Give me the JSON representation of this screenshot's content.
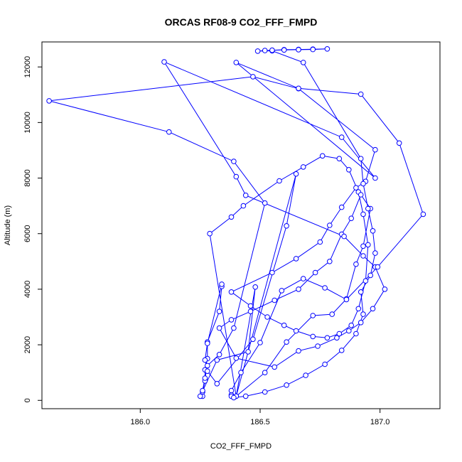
{
  "chart_data": {
    "type": "line",
    "title": "ORCAS RF08-9 CO2_FFF_FMPD",
    "xlabel": "CO2_FFF_FMPD",
    "ylabel": "Altitude (m)",
    "xlim": [
      185.59,
      187.25
    ],
    "ylim": [
      -300,
      12900
    ],
    "xticks": [
      186.0,
      186.5,
      187.0
    ],
    "xtick_labels": [
      "186.0",
      "186.5",
      "187.0"
    ],
    "yticks": [
      0,
      2000,
      4000,
      6000,
      8000,
      10000,
      12000
    ],
    "ytick_labels": [
      "0",
      "2000",
      "4000",
      "6000",
      "8000",
      "10000",
      "12000"
    ],
    "grid": false,
    "legend": "none",
    "series_color": "#0000ff",
    "series": [
      {
        "x": [
          186.26,
          186.26,
          186.27,
          186.27,
          186.28,
          186.28,
          186.33,
          186.34,
          186.34,
          186.28,
          186.27,
          186.28,
          186.32,
          186.47,
          186.61,
          186.65,
          186.4,
          186.48,
          186.45,
          186.32,
          186.25,
          186.26,
          186.27,
          186.28,
          186.33,
          186.39,
          186.52,
          186.39,
          186.12,
          185.62,
          186.47,
          186.66,
          186.98,
          186.94,
          186.9,
          186.84,
          186.79,
          186.75,
          186.65,
          186.55,
          186.38,
          186.46,
          186.53,
          186.6,
          186.65,
          186.72,
          186.78,
          186.83,
          186.88,
          186.91,
          186.94,
          186.95,
          186.93,
          186.91,
          186.87,
          186.83,
          186.76,
          186.68,
          186.58,
          186.43,
          186.38,
          186.29,
          186.4,
          186.52,
          186.61,
          186.72,
          186.8,
          186.86,
          186.9,
          186.93,
          186.96,
          186.92,
          186.88,
          186.84,
          186.79,
          186.73,
          186.66,
          186.56,
          186.46,
          186.38,
          186.33,
          186.4,
          186.56,
          186.66,
          186.74,
          186.82,
          186.87,
          186.92,
          186.97,
          187.02,
          186.98,
          186.93,
          186.85,
          186.44,
          186.4,
          186.1,
          186.84,
          186.98,
          186.4,
          186.66,
          186.92,
          187.08,
          187.18,
          186.99,
          186.86,
          186.77,
          186.68,
          186.59,
          186.5,
          186.42,
          186.38,
          186.38,
          186.38,
          186.39,
          186.44,
          186.52,
          186.61,
          186.69,
          186.77,
          186.84,
          186.9,
          186.93,
          186.92,
          186.96,
          186.98,
          186.97,
          186.95,
          186.93,
          186.92,
          186.68,
          186.55,
          186.49,
          186.52,
          186.55,
          186.6,
          186.66,
          186.72,
          186.78,
          186.72,
          186.66,
          186.6,
          186.55
        ],
        "y": [
          150,
          300,
          700,
          1100,
          1500,
          2100,
          3200,
          4100,
          4180,
          2050,
          1450,
          1050,
          600,
          2200,
          6280,
          8150,
          150,
          4080,
          1750,
          1450,
          150,
          350,
          800,
          1250,
          1650,
          2600,
          7100,
          8600,
          9660,
          10780,
          11650,
          11220,
          9020,
          7880,
          7650,
          6950,
          6300,
          5700,
          5100,
          4600,
          3900,
          3400,
          3000,
          2700,
          2500,
          2300,
          2250,
          2400,
          2700,
          3300,
          4300,
          5600,
          6700,
          7500,
          8300,
          8700,
          8800,
          8400,
          7900,
          7000,
          6600,
          6000,
          150,
          1000,
          2100,
          3050,
          3100,
          3650,
          4900,
          5550,
          6900,
          7400,
          6550,
          5980,
          5000,
          4600,
          4000,
          3600,
          3200,
          2900,
          2600,
          1520,
          1200,
          1780,
          1950,
          2250,
          2500,
          2800,
          3300,
          4000,
          4800,
          5200,
          5900,
          7380,
          8050,
          12180,
          9470,
          8000,
          12160,
          11230,
          11020,
          9260,
          6700,
          4800,
          3630,
          4050,
          4380,
          3950,
          2080,
          1000,
          350,
          200,
          150,
          100,
          150,
          300,
          550,
          900,
          1300,
          1800,
          2400,
          3100,
          3900,
          4500,
          5300,
          6100,
          6900,
          7800,
          8700,
          12160,
          12580,
          12570,
          12590,
          12600,
          12620,
          12630,
          12640,
          12650,
          12630,
          12620,
          12610,
          12600
        ]
      }
    ]
  }
}
